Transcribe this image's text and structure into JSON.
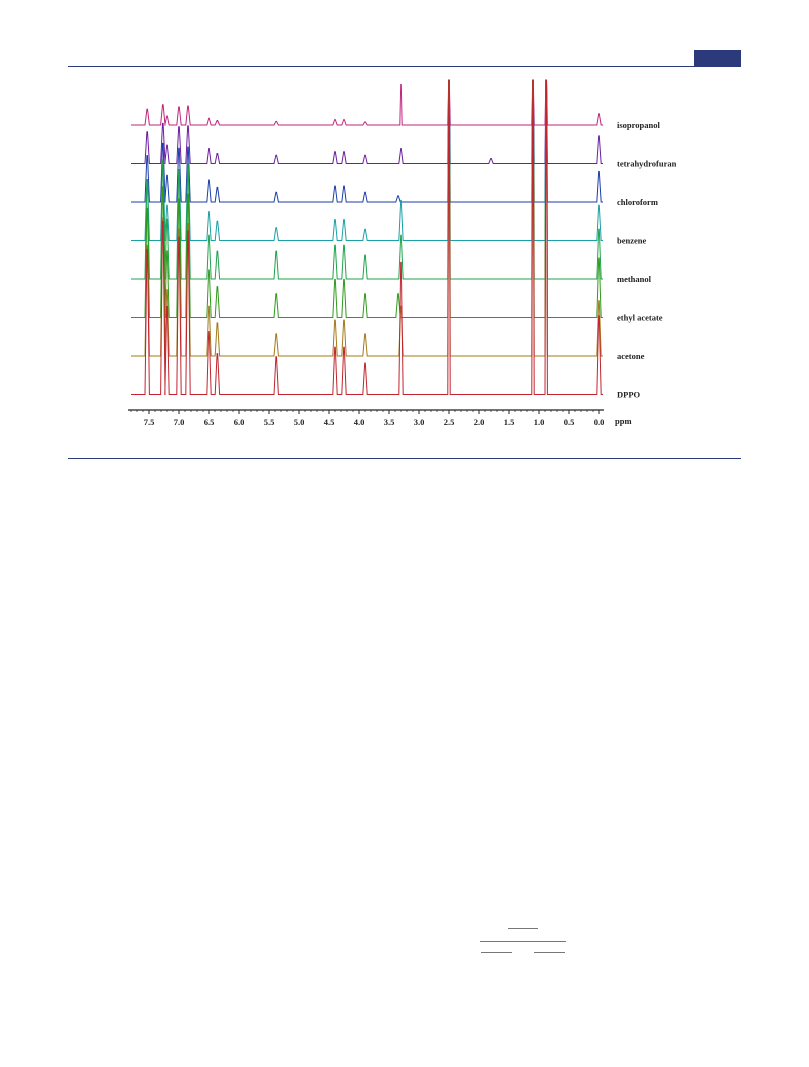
{
  "chart_data": {
    "type": "line",
    "title": "",
    "xlabel": "ppm",
    "ylabel": "",
    "xlim": [
      7.85,
      -0.2
    ],
    "x_reversed": true,
    "grid": false,
    "x_ticks": [
      "7.5",
      "7.0",
      "6.5",
      "6.0",
      "5.5",
      "5.0",
      "4.5",
      "4.0",
      "3.5",
      "3.0",
      "2.5",
      "2.0",
      "1.5",
      "1.0",
      "0.5",
      "0.0"
    ],
    "x_tick_values": [
      7.5,
      7.0,
      6.5,
      6.0,
      5.5,
      5.0,
      4.5,
      4.0,
      3.5,
      3.0,
      2.5,
      2.0,
      1.5,
      1.0,
      0.5,
      0.0
    ],
    "series": [
      {
        "name": "isopropanol",
        "color": "#c0247e",
        "peaks": [
          [
            7.53,
            0.35
          ],
          [
            7.27,
            0.45
          ],
          [
            7.2,
            0.2
          ],
          [
            7.0,
            0.4
          ],
          [
            6.85,
            0.42
          ],
          [
            6.5,
            0.15
          ],
          [
            6.36,
            0.1
          ],
          [
            5.38,
            0.08
          ],
          [
            4.4,
            0.12
          ],
          [
            4.25,
            0.12
          ],
          [
            3.9,
            0.07
          ],
          [
            3.3,
            0.9
          ],
          [
            2.5,
            1.0
          ],
          [
            1.1,
            1.0
          ],
          [
            0.88,
            1.0
          ],
          [
            0.0,
            0.25
          ]
        ]
      },
      {
        "name": "tetrahydrofuran",
        "color": "#6a1fa0",
        "peaks": [
          [
            7.53,
            0.38
          ],
          [
            7.27,
            0.48
          ],
          [
            7.2,
            0.22
          ],
          [
            7.0,
            0.44
          ],
          [
            6.85,
            0.45
          ],
          [
            6.5,
            0.18
          ],
          [
            6.36,
            0.12
          ],
          [
            5.38,
            0.1
          ],
          [
            4.4,
            0.14
          ],
          [
            4.25,
            0.14
          ],
          [
            3.9,
            0.1
          ],
          [
            3.3,
            0.18
          ],
          [
            2.5,
            1.0
          ],
          [
            1.8,
            0.06
          ],
          [
            1.1,
            1.0
          ],
          [
            0.88,
            1.0
          ],
          [
            0.0,
            0.33
          ]
        ]
      },
      {
        "name": "chloroform",
        "color": "#1a3ea8",
        "peaks": [
          [
            7.53,
            0.38
          ],
          [
            7.27,
            0.48
          ],
          [
            7.2,
            0.22
          ],
          [
            7.0,
            0.44
          ],
          [
            6.85,
            0.45
          ],
          [
            6.5,
            0.18
          ],
          [
            6.36,
            0.12
          ],
          [
            5.38,
            0.08
          ],
          [
            4.4,
            0.13
          ],
          [
            4.25,
            0.13
          ],
          [
            3.9,
            0.08
          ],
          [
            3.35,
            0.05
          ],
          [
            2.5,
            1.0
          ],
          [
            1.1,
            1.0
          ],
          [
            0.88,
            1.0
          ],
          [
            0.0,
            0.25
          ]
        ]
      },
      {
        "name": "benzene",
        "color": "#1aa0a8",
        "peaks": [
          [
            7.53,
            0.38
          ],
          [
            7.27,
            0.48
          ],
          [
            7.2,
            0.22
          ],
          [
            7.0,
            0.44
          ],
          [
            6.85,
            0.45
          ],
          [
            6.5,
            0.18
          ],
          [
            6.36,
            0.12
          ],
          [
            5.38,
            0.08
          ],
          [
            4.4,
            0.13
          ],
          [
            4.25,
            0.13
          ],
          [
            3.9,
            0.07
          ],
          [
            3.3,
            0.25
          ],
          [
            2.5,
            1.0
          ],
          [
            1.1,
            1.0
          ],
          [
            0.88,
            1.0
          ],
          [
            0.0,
            0.22
          ]
        ]
      },
      {
        "name": "methanol",
        "color": "#1fa34a",
        "peaks": [
          [
            7.53,
            0.5
          ],
          [
            7.27,
            0.6
          ],
          [
            7.2,
            0.3
          ],
          [
            7.0,
            0.55
          ],
          [
            6.85,
            0.58
          ],
          [
            6.5,
            0.22
          ],
          [
            6.36,
            0.14
          ],
          [
            5.38,
            0.14
          ],
          [
            4.4,
            0.17
          ],
          [
            4.25,
            0.17
          ],
          [
            3.9,
            0.12
          ],
          [
            3.3,
            0.22
          ],
          [
            2.5,
            1.0
          ],
          [
            1.1,
            1.0
          ],
          [
            0.88,
            1.0
          ],
          [
            0.0,
            0.25
          ]
        ]
      },
      {
        "name": "ethyl acetate",
        "color": "#2f9a1a",
        "peaks": [
          [
            7.53,
            0.46
          ],
          [
            7.27,
            0.55
          ],
          [
            7.2,
            0.28
          ],
          [
            7.0,
            0.5
          ],
          [
            6.85,
            0.52
          ],
          [
            6.5,
            0.2
          ],
          [
            6.36,
            0.13
          ],
          [
            5.38,
            0.1
          ],
          [
            4.4,
            0.16
          ],
          [
            4.25,
            0.16
          ],
          [
            3.9,
            0.1
          ],
          [
            3.35,
            0.1
          ],
          [
            2.5,
            1.0
          ],
          [
            1.1,
            1.0
          ],
          [
            0.88,
            1.0
          ],
          [
            0.0,
            0.25
          ]
        ]
      },
      {
        "name": "acetone",
        "color": "#a37a1a",
        "peaks": [
          [
            7.53,
            0.4
          ],
          [
            7.27,
            0.5
          ],
          [
            7.2,
            0.24
          ],
          [
            7.0,
            0.46
          ],
          [
            6.85,
            0.48
          ],
          [
            6.5,
            0.18
          ],
          [
            6.36,
            0.12
          ],
          [
            5.38,
            0.08
          ],
          [
            4.4,
            0.13
          ],
          [
            4.25,
            0.13
          ],
          [
            3.9,
            0.08
          ],
          [
            3.3,
            0.18
          ],
          [
            2.5,
            1.0
          ],
          [
            1.1,
            1.0
          ],
          [
            0.88,
            1.0
          ],
          [
            0.0,
            0.2
          ]
        ]
      },
      {
        "name": "DPPO",
        "color": "#c0242e",
        "peaks": [
          [
            7.53,
            0.46
          ],
          [
            7.27,
            0.55
          ],
          [
            7.2,
            0.28
          ],
          [
            7.0,
            0.5
          ],
          [
            6.85,
            0.52
          ],
          [
            6.5,
            0.2
          ],
          [
            6.36,
            0.13
          ],
          [
            5.38,
            0.12
          ],
          [
            4.4,
            0.15
          ],
          [
            4.25,
            0.15
          ],
          [
            3.9,
            0.1
          ],
          [
            3.3,
            0.42
          ],
          [
            2.5,
            1.0
          ],
          [
            1.1,
            1.0
          ],
          [
            0.88,
            1.0
          ],
          [
            0.0,
            0.25
          ]
        ]
      }
    ]
  }
}
